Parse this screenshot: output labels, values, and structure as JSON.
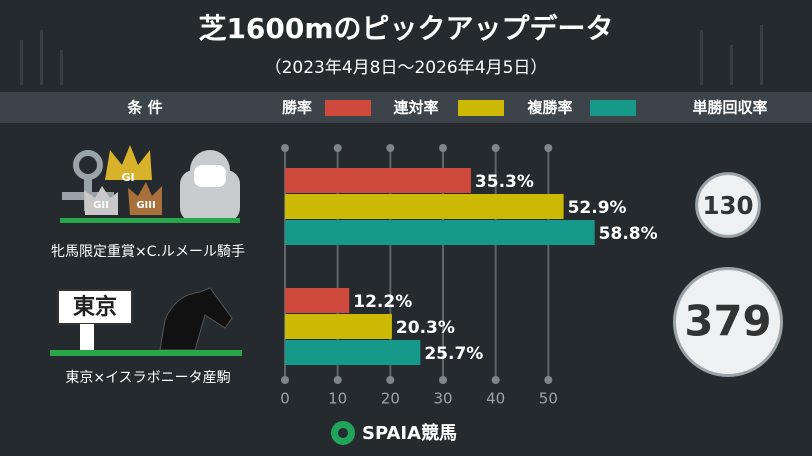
{
  "chart_data": {
    "type": "bar",
    "orientation": "horizontal",
    "title": "芝1600mのピックアップデータ",
    "subtitle": "（2023年4月8日～2026年4月5日）",
    "condition_header": "条 件",
    "categories": [
      "牝馬限定重賞×C.ルメール騎手",
      "東京×イスラボニータ産駒"
    ],
    "series": [
      {
        "name": "勝率",
        "color": "#cf4a3c",
        "values": [
          35.3,
          12.2
        ],
        "value_labels": [
          "35.3%",
          "12.2%"
        ]
      },
      {
        "name": "連対率",
        "color": "#cbb904",
        "values": [
          52.9,
          20.3
        ],
        "value_labels": [
          "52.9%",
          "20.3%"
        ]
      },
      {
        "name": "複勝率",
        "color": "#17998a",
        "values": [
          58.8,
          25.7
        ],
        "value_labels": [
          "58.8%",
          "25.7%"
        ]
      }
    ],
    "return_rate": {
      "name": "単勝回収率",
      "values": [
        130,
        379
      ]
    },
    "xlim": [
      0,
      60
    ],
    "xticks": [
      0,
      10,
      20,
      30,
      40,
      50
    ],
    "grid": true
  },
  "icons": {
    "crowns": [
      "GI",
      "GII",
      "GIII"
    ],
    "sign": "東京"
  },
  "footer": {
    "brand": "SPAIA競馬"
  }
}
